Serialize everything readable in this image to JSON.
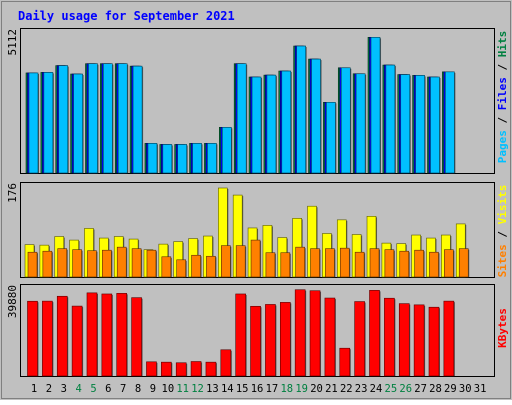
{
  "chart_data": {
    "type": "bar",
    "title": "Daily usage for September 2021",
    "days": [
      "1",
      "2",
      "3",
      "4",
      "5",
      "6",
      "7",
      "8",
      "9",
      "10",
      "11",
      "12",
      "13",
      "14",
      "15",
      "16",
      "17",
      "18",
      "19",
      "20",
      "21",
      "22",
      "23",
      "24",
      "25",
      "26",
      "27",
      "28",
      "29",
      "30",
      "31"
    ],
    "weekend_days": [
      "4",
      "5",
      "11",
      "12",
      "18",
      "19",
      "25",
      "26"
    ],
    "panels": [
      {
        "max_label": "5112",
        "ymax": 5112,
        "axis_label": [
          "Pages",
          "Files",
          "Hits"
        ],
        "axis_label_colors": [
          "#00c0ff",
          "#0000ff",
          "#008040"
        ],
        "series": [
          {
            "name": "Hits",
            "color": "#008040",
            "values": [
              3680,
              3700,
              3950,
              3640,
              4020,
              4020,
              4020,
              3930,
              1090,
              1050,
              1050,
              1090,
              1090,
              1680,
              4020,
              3530,
              3600,
              3750,
              4670,
              4190,
              2600,
              3870,
              3650,
              4990,
              3970,
              3620,
              3590,
              3530,
              3720,
              null,
              null
            ]
          },
          {
            "name": "Files",
            "color": "#0000ff",
            "values": [
              3680,
              3700,
              3950,
              3640,
              4020,
              4020,
              4020,
              3930,
              1090,
              1050,
              1050,
              1090,
              1090,
              1680,
              4020,
              3530,
              3600,
              3750,
              4670,
              4190,
              2600,
              3870,
              3650,
              4990,
              3970,
              3620,
              3590,
              3530,
              3720,
              null,
              null
            ]
          },
          {
            "name": "Pages",
            "color": "#00c0ff",
            "values": [
              3680,
              3700,
              3950,
              3640,
              4020,
              4020,
              4020,
              3930,
              1090,
              1050,
              1050,
              1090,
              1090,
              1680,
              4020,
              3530,
              3600,
              3750,
              4670,
              4190,
              2600,
              3870,
              3650,
              4990,
              3970,
              3620,
              3590,
              3530,
              3720,
              null,
              null
            ]
          }
        ]
      },
      {
        "max_label": "176",
        "ymax": 176,
        "axis_label": [
          "Sites",
          "Visits"
        ],
        "axis_label_colors": [
          "#ff8000",
          "#ffff00"
        ],
        "series": [
          {
            "name": "Visits",
            "color": "#ffff00",
            "values": [
              64,
              63,
              80,
              73,
              96,
              77,
              80,
              75,
              54,
              65,
              70,
              76,
              81,
              176,
              162,
              97,
              102,
              78,
              116,
              140,
              86,
              113,
              84,
              120,
              67,
              66,
              83,
              77,
              83,
              105,
              null
            ]
          },
          {
            "name": "Sites",
            "color": "#ff8000",
            "values": [
              49,
              51,
              56,
              54,
              52,
              53,
              59,
              56,
              53,
              40,
              34,
              43,
              41,
              62,
              62,
              73,
              48,
              48,
              59,
              56,
              56,
              57,
              49,
              56,
              54,
              51,
              53,
              49,
              54,
              56,
              null
            ]
          }
        ]
      },
      {
        "max_label": "39880",
        "ymax": 39880,
        "axis_label": [
          "KBytes"
        ],
        "axis_label_colors": [
          "#ff0000"
        ],
        "series": [
          {
            "name": "KBytes",
            "color": "#ff0000",
            "values": [
              34670,
              34720,
              36980,
              32420,
              38550,
              38040,
              38330,
              36330,
              6580,
              6420,
              6140,
              6710,
              6420,
              12160,
              38040,
              32330,
              33180,
              34140,
              40000,
              39540,
              36150,
              12890,
              34520,
              39720,
              36070,
              33560,
              32990,
              31900,
              34720,
              null,
              null
            ]
          }
        ]
      }
    ]
  }
}
